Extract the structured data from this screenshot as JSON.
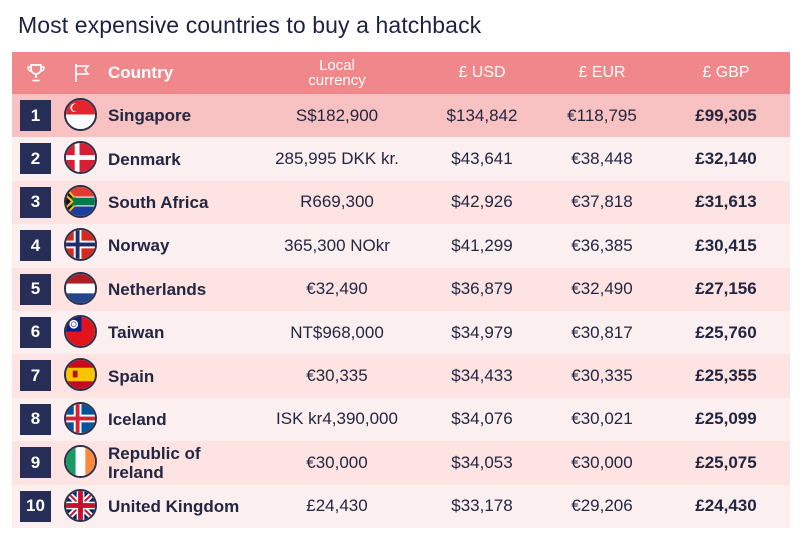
{
  "title": "Most expensive countries to buy a hatchback",
  "header": {
    "country": "Country",
    "local_line1": "Local",
    "local_line2": "currency",
    "usd": "£ USD",
    "eur": "£ EUR",
    "gbp": "£ GBP",
    "trophy_icon": "trophy-icon",
    "flag_icon": "flag-icon"
  },
  "colors": {
    "header_bg": "#f0878a",
    "rank_bg": "#262d57",
    "row_first": "#f7c2c1",
    "row_alt_a": "#fde4e2",
    "row_alt_b": "#fbf0ef"
  },
  "rows": [
    {
      "rank": "1",
      "country": "Singapore",
      "flag": "singapore-flag-icon",
      "local": "S$182,900",
      "usd": "$134,842",
      "eur": "€118,795",
      "gbp": "£99,305"
    },
    {
      "rank": "2",
      "country": "Denmark",
      "flag": "denmark-flag-icon",
      "local": "285,995 DKK kr.",
      "usd": "$43,641",
      "eur": "€38,448",
      "gbp": "£32,140"
    },
    {
      "rank": "3",
      "country": "South Africa",
      "flag": "south-africa-flag-icon",
      "local": "R669,300",
      "usd": "$42,926",
      "eur": "€37,818",
      "gbp": "£31,613"
    },
    {
      "rank": "4",
      "country": "Norway",
      "flag": "norway-flag-icon",
      "local": "365,300 NOkr",
      "usd": "$41,299",
      "eur": "€36,385",
      "gbp": "£30,415"
    },
    {
      "rank": "5",
      "country": "Netherlands",
      "flag": "netherlands-flag-icon",
      "local": "€32,490",
      "usd": "$36,879",
      "eur": "€32,490",
      "gbp": "£27,156"
    },
    {
      "rank": "6",
      "country": "Taiwan",
      "flag": "taiwan-flag-icon",
      "local": "NT$968,000",
      "usd": "$34,979",
      "eur": "€30,817",
      "gbp": "£25,760"
    },
    {
      "rank": "7",
      "country": "Spain",
      "flag": "spain-flag-icon",
      "local": "€30,335",
      "usd": "$34,433",
      "eur": "€30,335",
      "gbp": "£25,355"
    },
    {
      "rank": "8",
      "country": "Iceland",
      "flag": "iceland-flag-icon",
      "local": "ISK kr4,390,000",
      "usd": "$34,076",
      "eur": "€30,021",
      "gbp": "£25,099"
    },
    {
      "rank": "9",
      "country": "Republic of Ireland",
      "country_line1": "Republic of",
      "country_line2": "Ireland",
      "flag": "ireland-flag-icon",
      "local": "€30,000",
      "usd": "$34,053",
      "eur": "€30,000",
      "gbp": "£25,075"
    },
    {
      "rank": "10",
      "country": "United Kingdom",
      "flag": "uk-flag-icon",
      "local": "£24,430",
      "usd": "$33,178",
      "eur": "€29,206",
      "gbp": "£24,430"
    }
  ]
}
